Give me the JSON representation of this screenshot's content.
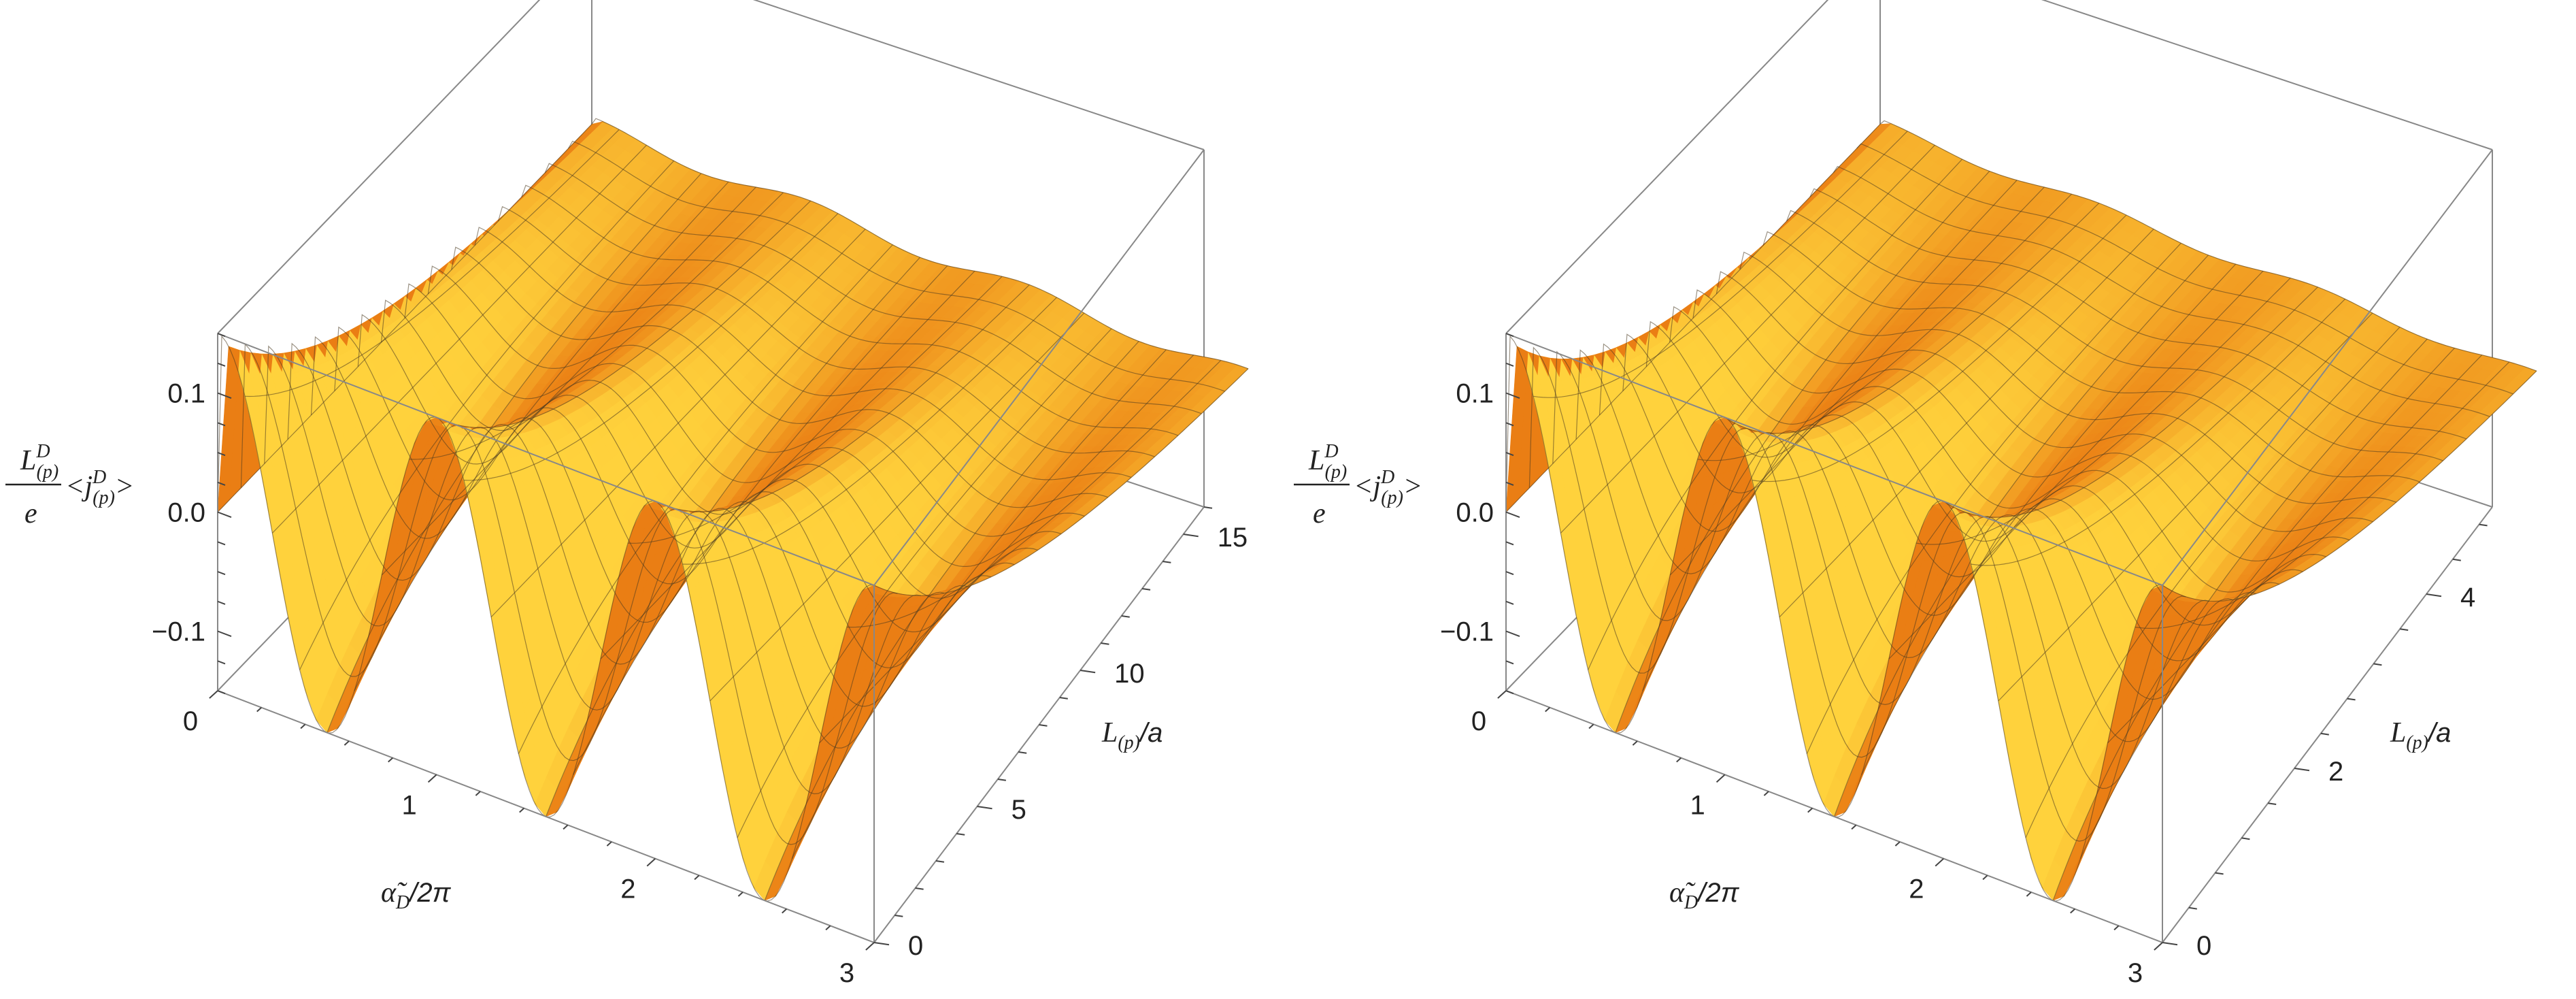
{
  "chart_data": [
    {
      "type": "surface",
      "panel": "left",
      "x_label": {
        "main": "α̃",
        "sub": "D",
        "rest": "/2π"
      },
      "y_label": {
        "main": "L",
        "sub": "(p)",
        "rest": "/a"
      },
      "z_label": {
        "num": "L",
        "num_sup": "D",
        "num_sub": "(p)",
        "den": "e",
        "bracket": "<j",
        "br_sup": "D",
        "br_sub": "(p)",
        "close": ">"
      },
      "x_ticks": [
        "0",
        "1",
        "2",
        "3"
      ],
      "y_ticks": [
        "0",
        "5",
        "10",
        "15"
      ],
      "z_ticks": [
        "0.1",
        "0.0",
        "−0.1"
      ],
      "x_range": [
        0,
        3
      ],
      "y_range": [
        0,
        16
      ],
      "z_range": [
        -0.15,
        0.15
      ],
      "surface": {
        "amplitude": 0.15,
        "decay_length": 5,
        "period": 1
      },
      "colors": {
        "surface_light": "#ffd23c",
        "surface_dark": "#e8750f",
        "mesh": "#4a3a20",
        "box": "#888888"
      }
    },
    {
      "type": "surface",
      "panel": "right",
      "x_label": {
        "main": "α̃",
        "sub": "D",
        "rest": "/2π"
      },
      "y_label": {
        "main": "L",
        "sub": "(p)",
        "rest": "/a"
      },
      "z_label": {
        "num": "L",
        "num_sup": "D",
        "num_sub": "(p)",
        "den": "e",
        "bracket": "<j",
        "br_sup": "D",
        "br_sub": "(p)",
        "close": ">"
      },
      "x_ticks": [
        "0",
        "1",
        "2",
        "3"
      ],
      "y_ticks": [
        "0",
        "2",
        "4"
      ],
      "z_ticks": [
        "0.1",
        "0.0",
        "−0.1"
      ],
      "x_range": [
        0,
        3
      ],
      "y_range": [
        0,
        5
      ],
      "z_range": [
        -0.15,
        0.15
      ],
      "surface": {
        "amplitude": 0.15,
        "decay_length": 1.4,
        "period": 1
      },
      "colors": {
        "surface_light": "#ffd23c",
        "surface_dark": "#e8750f",
        "mesh": "#4a3a20",
        "box": "#888888"
      }
    }
  ]
}
